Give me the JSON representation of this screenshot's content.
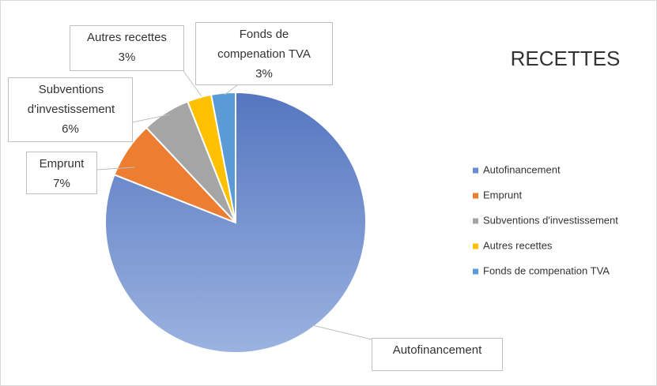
{
  "chart_data": {
    "type": "pie",
    "title": "RECETTES",
    "categories": [
      "Autofinancement",
      "Emprunt",
      "Subventions d'investissement",
      "Autres recettes",
      "Fonds de compenation TVA"
    ],
    "values": [
      81,
      7,
      6,
      3,
      3
    ],
    "value_labels": [
      null,
      "7%",
      "6%",
      "3%",
      "3%"
    ],
    "colors": [
      "#6a8cd0",
      "#ed7d31",
      "#a5a5a5",
      "#ffc000",
      "#5b9bd5"
    ],
    "legend": "right"
  }
}
